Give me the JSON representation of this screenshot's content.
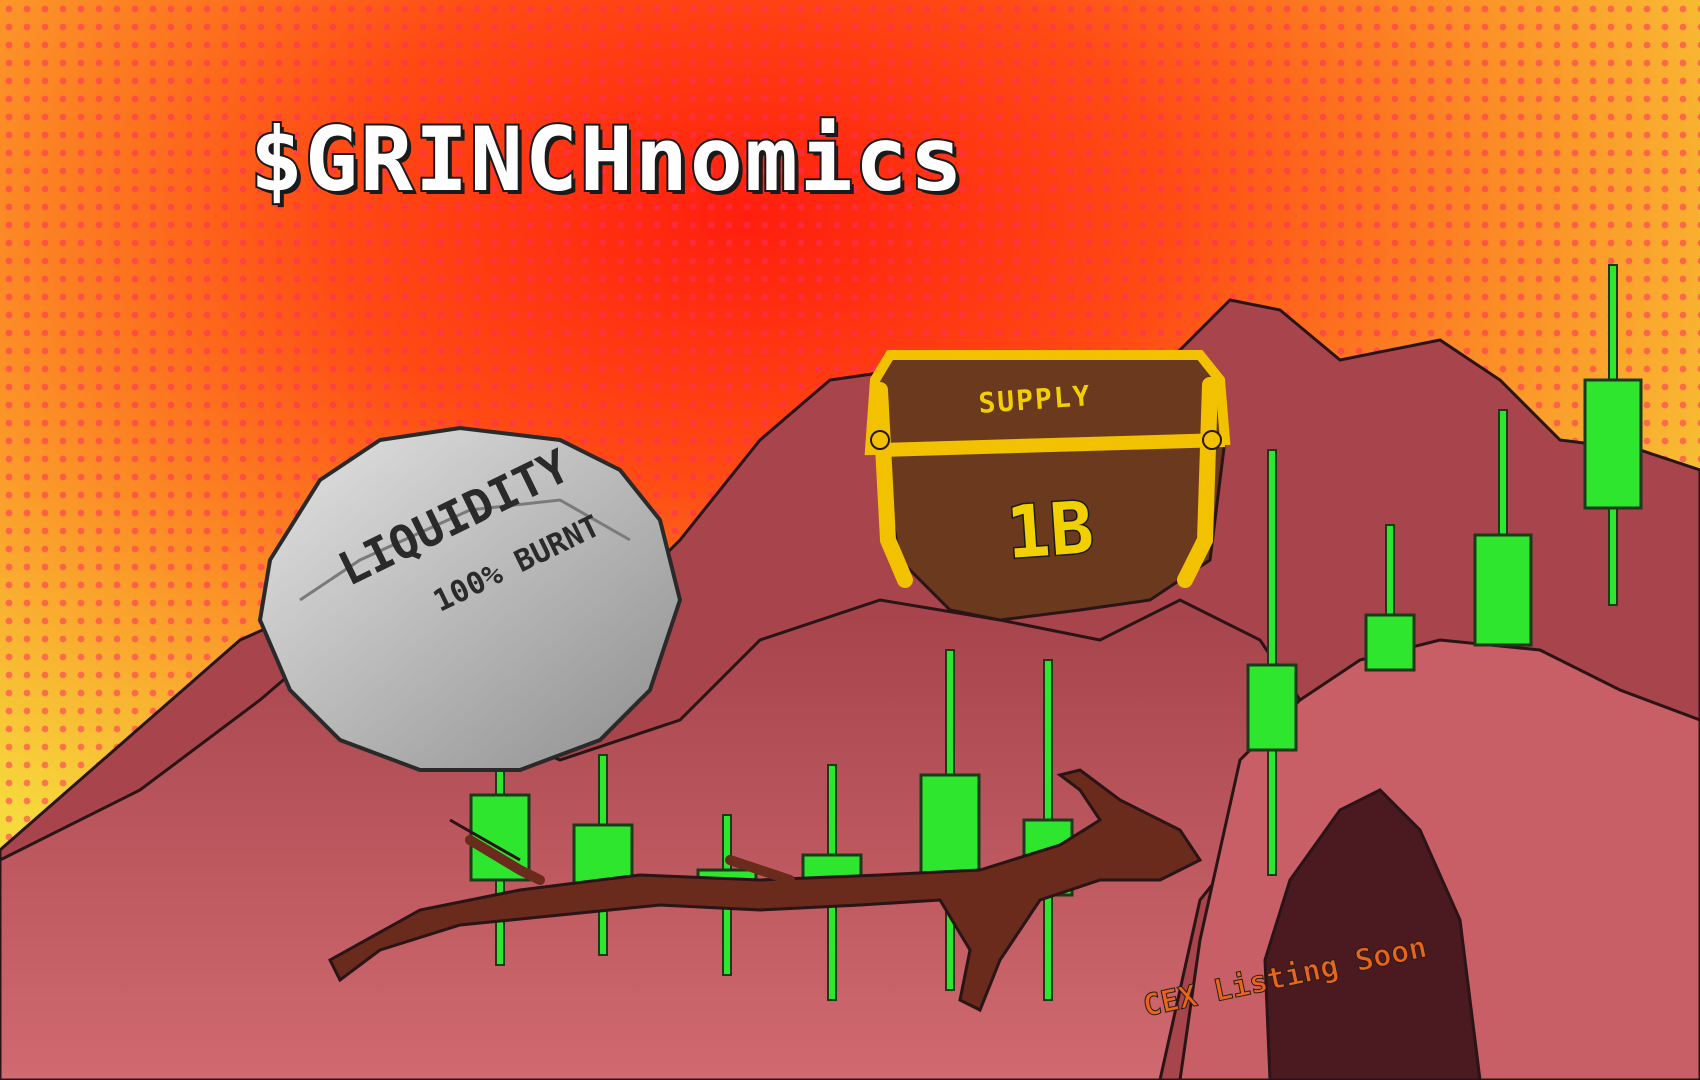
{
  "title": "$GRINCHnomics",
  "liquidity": {
    "label": "LIQUIDITY",
    "detail": "100% BURNT"
  },
  "supply": {
    "label": "SUPPLY",
    "value": "1B"
  },
  "cex": {
    "label": "CEX Listing Soon"
  },
  "colors": {
    "sky_yellow": "#f6d23a",
    "sky_red": "#ff3a1a",
    "mountain": "#b8545a",
    "mountain_dark": "#8a343c",
    "candle_green": "#2ee62e",
    "chest_gold": "#f2c200",
    "chest_wood": "#6b3a1e",
    "rock_grey": "#b9b9b9"
  }
}
